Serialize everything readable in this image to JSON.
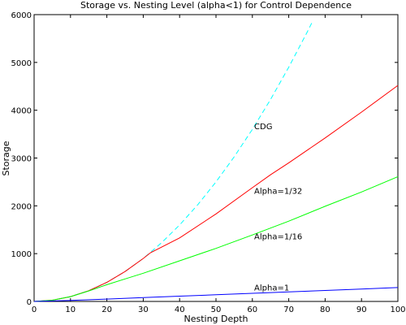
{
  "chart_data": {
    "type": "line",
    "title": "Storage vs. Nesting Level (alpha<1) for Control Dependence",
    "xlabel": "Nesting Depth",
    "ylabel": "Storage",
    "xlim": [
      0,
      100
    ],
    "ylim": [
      0,
      6000
    ],
    "xticks": [
      0,
      10,
      20,
      30,
      40,
      50,
      60,
      70,
      80,
      90,
      100
    ],
    "yticks": [
      0,
      1000,
      2000,
      3000,
      4000,
      5000,
      6000
    ],
    "grid": false,
    "legend": "none",
    "series": [
      {
        "name": "CDG",
        "color": "#00ffff",
        "dashed": true,
        "x": [
          0,
          5,
          10,
          15,
          20,
          25,
          30,
          35,
          40,
          45,
          50,
          55,
          60,
          65,
          70,
          75,
          76.5
        ],
        "y": [
          0,
          25,
          100,
          225,
          400,
          625,
          900,
          1225,
          1600,
          2025,
          2500,
          3025,
          3600,
          4225,
          4900,
          5625,
          5850
        ]
      },
      {
        "name": "Alpha=1/32",
        "color": "#ff0000",
        "dashed": false,
        "x": [
          0,
          5,
          10,
          15,
          20,
          25,
          30,
          32,
          40,
          50,
          60,
          65,
          70,
          80,
          90,
          100
        ],
        "y": [
          0,
          25,
          100,
          225,
          400,
          625,
          900,
          1020,
          1330,
          1830,
          2380,
          2650,
          2900,
          3420,
          3960,
          4520
        ]
      },
      {
        "name": "Alpha=1/16",
        "color": "#00ff00",
        "dashed": false,
        "x": [
          0,
          5,
          10,
          15,
          20,
          25,
          30,
          40,
          50,
          60,
          70,
          80,
          90,
          100
        ],
        "y": [
          0,
          25,
          100,
          220,
          350,
          470,
          590,
          850,
          1110,
          1390,
          1680,
          1990,
          2290,
          2610
        ]
      },
      {
        "name": "Alpha=1",
        "color": "#0000ff",
        "dashed": false,
        "x": [
          0,
          10,
          20,
          30,
          40,
          50,
          60,
          70,
          80,
          90,
          100
        ],
        "y": [
          0,
          20,
          50,
          80,
          110,
          140,
          170,
          200,
          230,
          260,
          290
        ]
      }
    ],
    "annotations": [
      {
        "text": "CDG",
        "x": 60.5,
        "y": 3600
      },
      {
        "text": "Alpha=1/32",
        "x": 60.5,
        "y": 2250
      },
      {
        "text": "Alpha=1/16",
        "x": 60.5,
        "y": 1300
      },
      {
        "text": "Alpha=1",
        "x": 60.5,
        "y": 230
      }
    ]
  }
}
